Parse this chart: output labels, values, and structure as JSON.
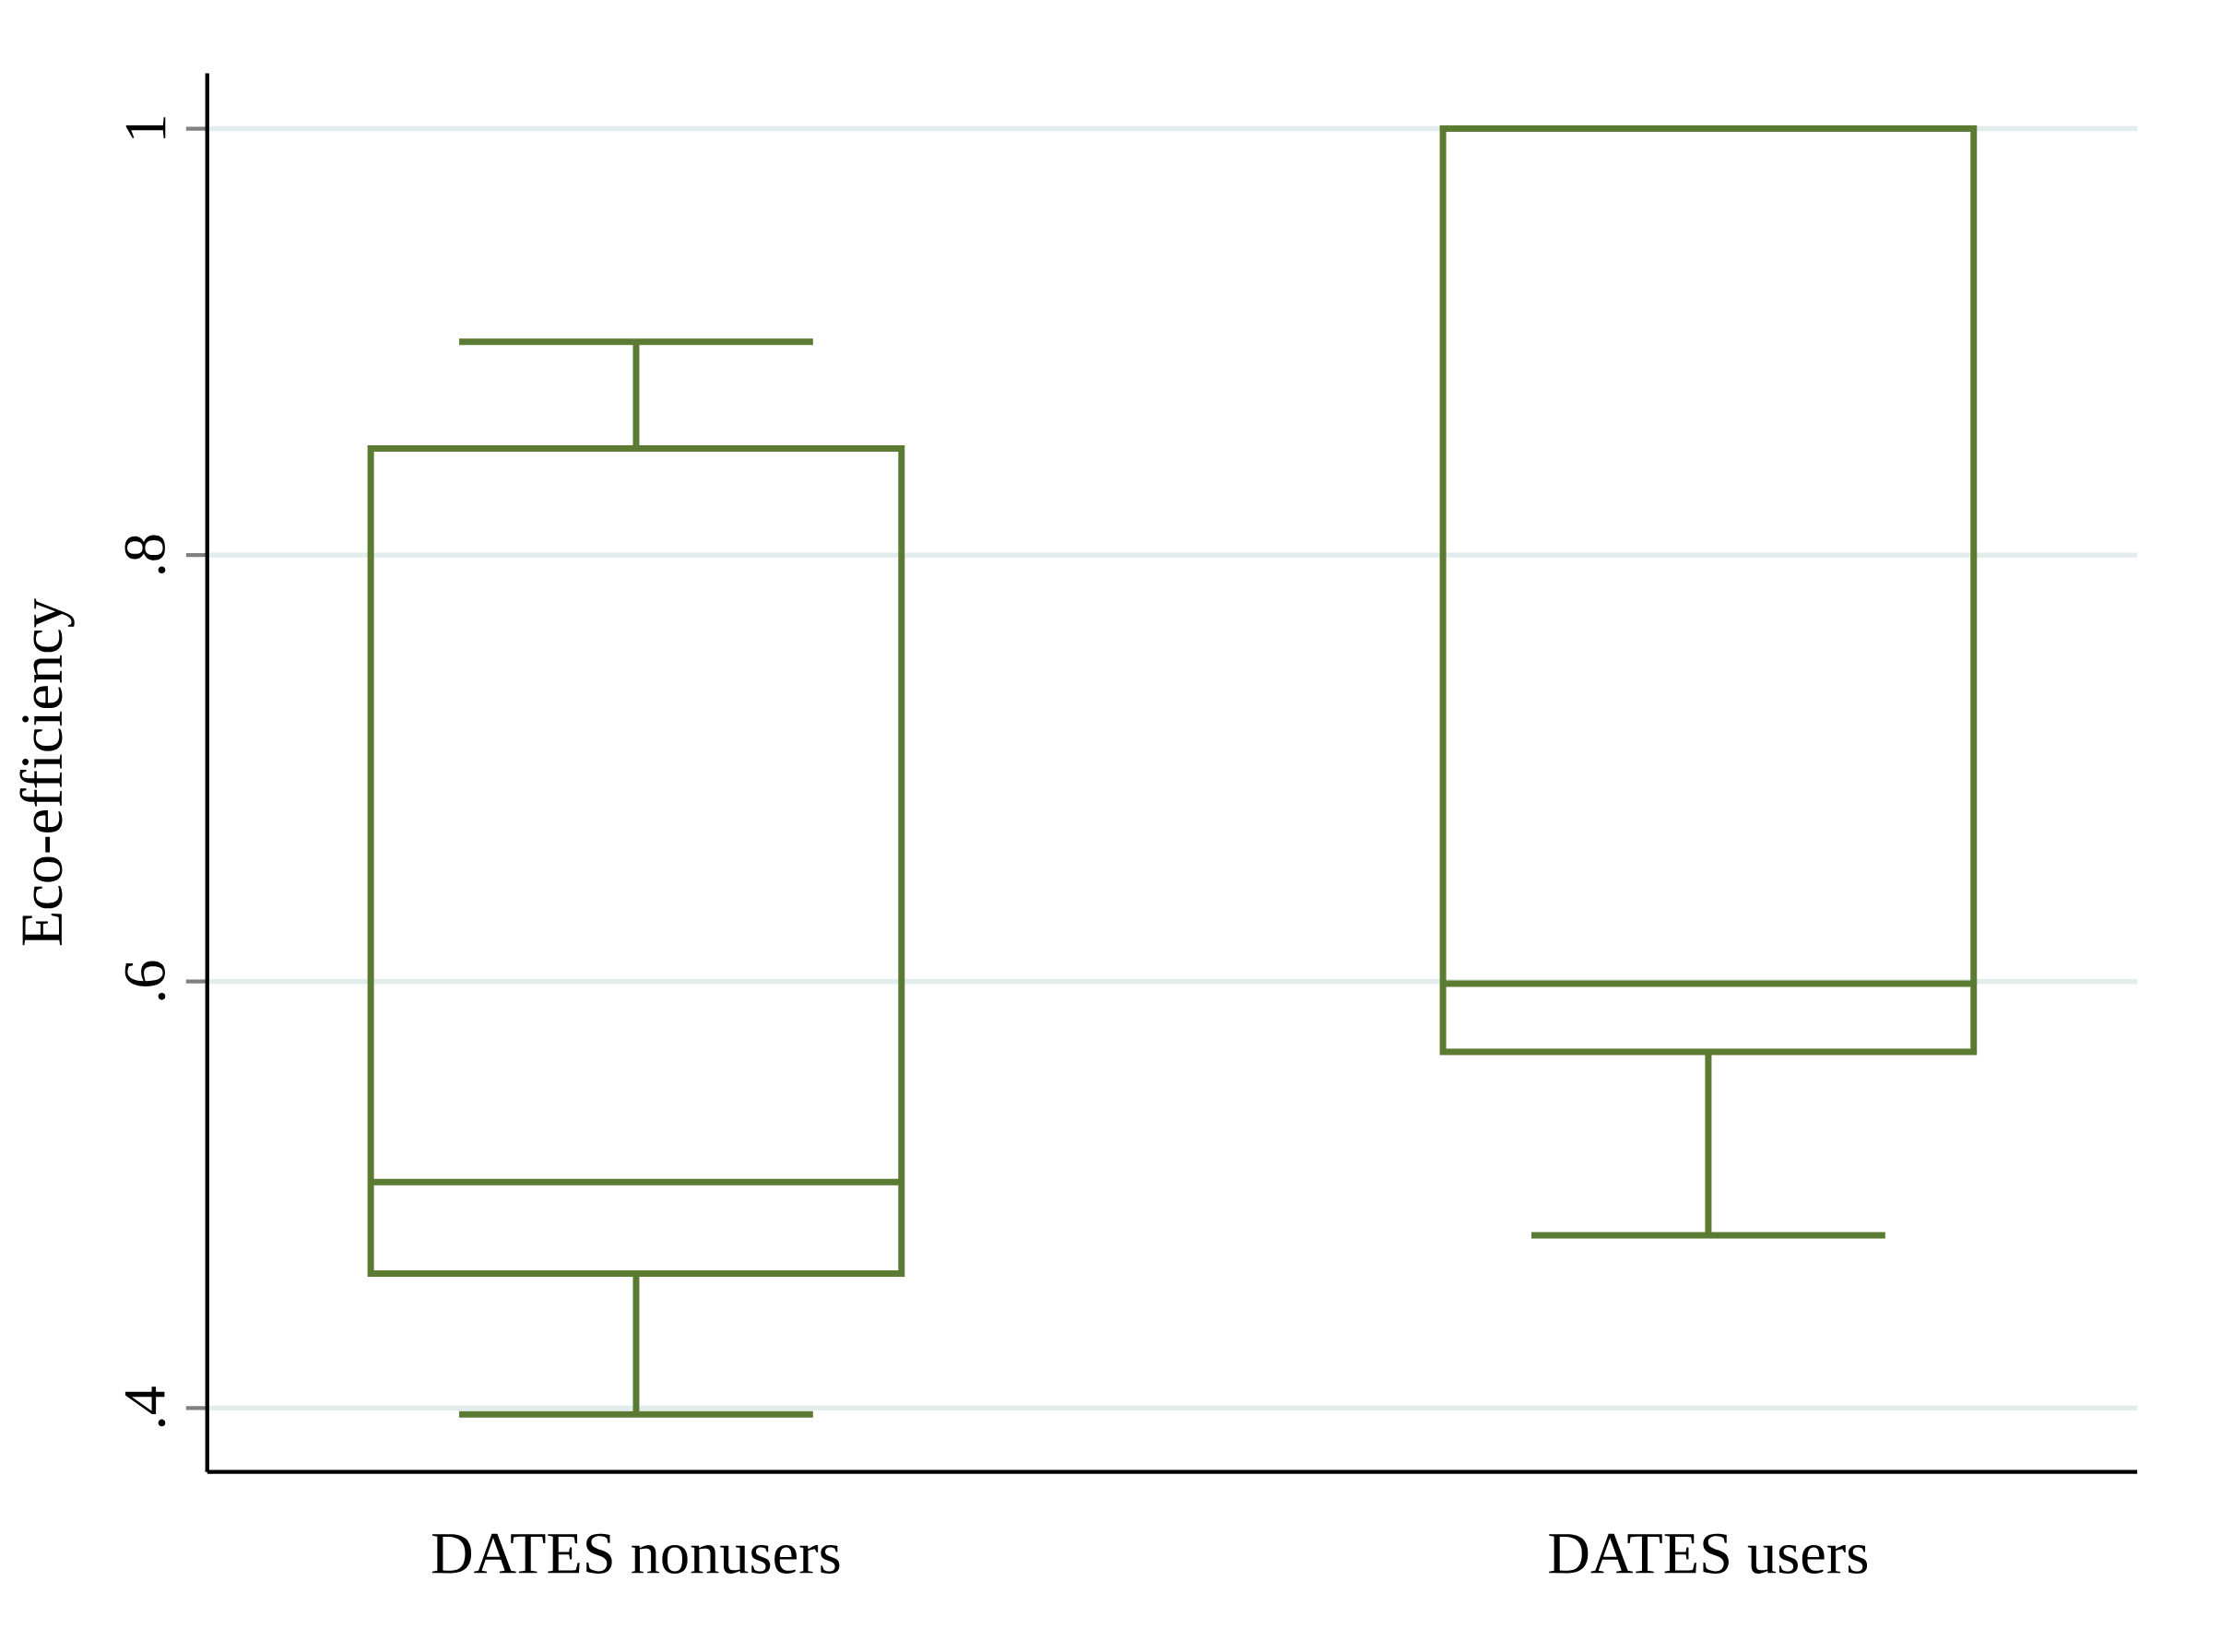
{
  "chart_data": {
    "type": "box",
    "ylabel": "Eco-efficiency",
    "categories": [
      "DATES nonusers",
      "DATES users"
    ],
    "boxes": [
      {
        "low": 0.397,
        "q1": 0.463,
        "median": 0.506,
        "q3": 0.85,
        "high": 0.9
      },
      {
        "low": 0.481,
        "q1": 0.567,
        "median": 0.599,
        "q3": 1.0,
        "high": 1.0
      }
    ],
    "color": "#5b7b32",
    "ylim": [
      0.37,
      1.026
    ],
    "yticks": [
      {
        "value": 0.4,
        "label": ".4"
      },
      {
        "value": 0.6,
        "label": ".6"
      },
      {
        "value": 0.8,
        "label": ".8"
      },
      1
    ],
    "grid": "y"
  }
}
